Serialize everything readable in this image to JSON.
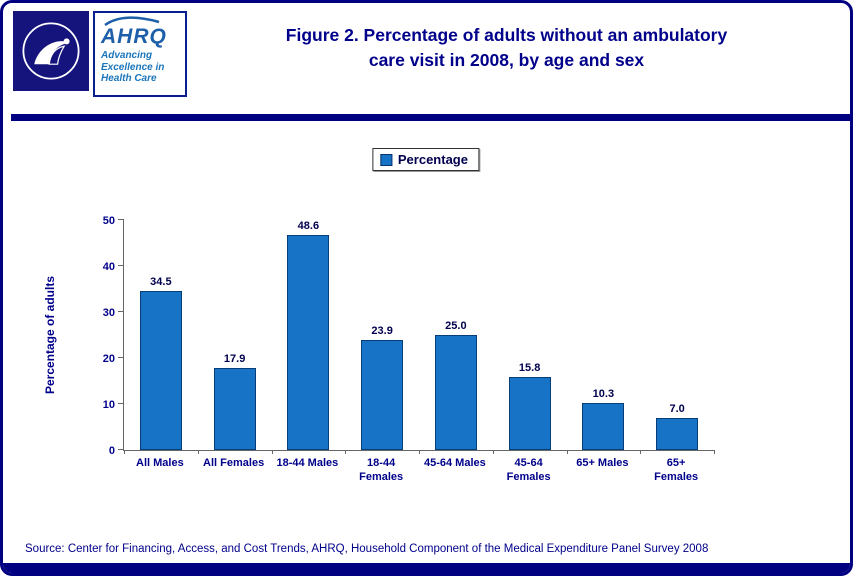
{
  "header": {
    "title_line1": "Figure 2. Percentage of adults without an ambulatory",
    "title_line2": "care visit in 2008, by age and sex",
    "logo": {
      "hhs": "hhs-eagle-emblem",
      "ahrq_text": "AHRQ",
      "tagline_line1": "Advancing",
      "tagline_line2": "Excellence in",
      "tagline_line3": "Health Care"
    }
  },
  "colors": {
    "accent_navy": "#000080",
    "title_text": "#00008B",
    "bar": "#1673C6"
  },
  "chart_data": {
    "type": "bar",
    "title": "Figure 2. Percentage of adults without an ambulatory care visit in 2008, by age and sex",
    "categories": [
      "All Males",
      "All Females",
      "18-44 Males",
      "18-44 Females",
      "45-64 Males",
      "45-64 Females",
      "65+ Males",
      "65+ Females"
    ],
    "category_labels": [
      "All Males",
      "All Females",
      "18-44 Males",
      "18-44\nFemales",
      "45-64 Males",
      "45-64\nFemales",
      "65+ Males",
      "65+\nFemales"
    ],
    "values": [
      34.5,
      17.9,
      48.6,
      23.9,
      25.0,
      15.8,
      10.3,
      7.0
    ],
    "value_labels": [
      "34.5",
      "17.9",
      "48.6",
      "23.9",
      "25.0",
      "15.8",
      "10.3",
      "7.0"
    ],
    "xlabel": "",
    "ylabel": "Percentage of adults",
    "yticks": [
      0,
      10,
      20,
      30,
      40,
      50
    ],
    "ylim": [
      0,
      50
    ],
    "grid": false,
    "bar_color": "#1673C6",
    "legend_label": "Percentage",
    "legend_position": "top-center"
  },
  "footer": {
    "source": "Source: Center for Financing, Access, and Cost Trends, AHRQ, Household Component of the Medical Expenditure Panel Survey 2008"
  }
}
